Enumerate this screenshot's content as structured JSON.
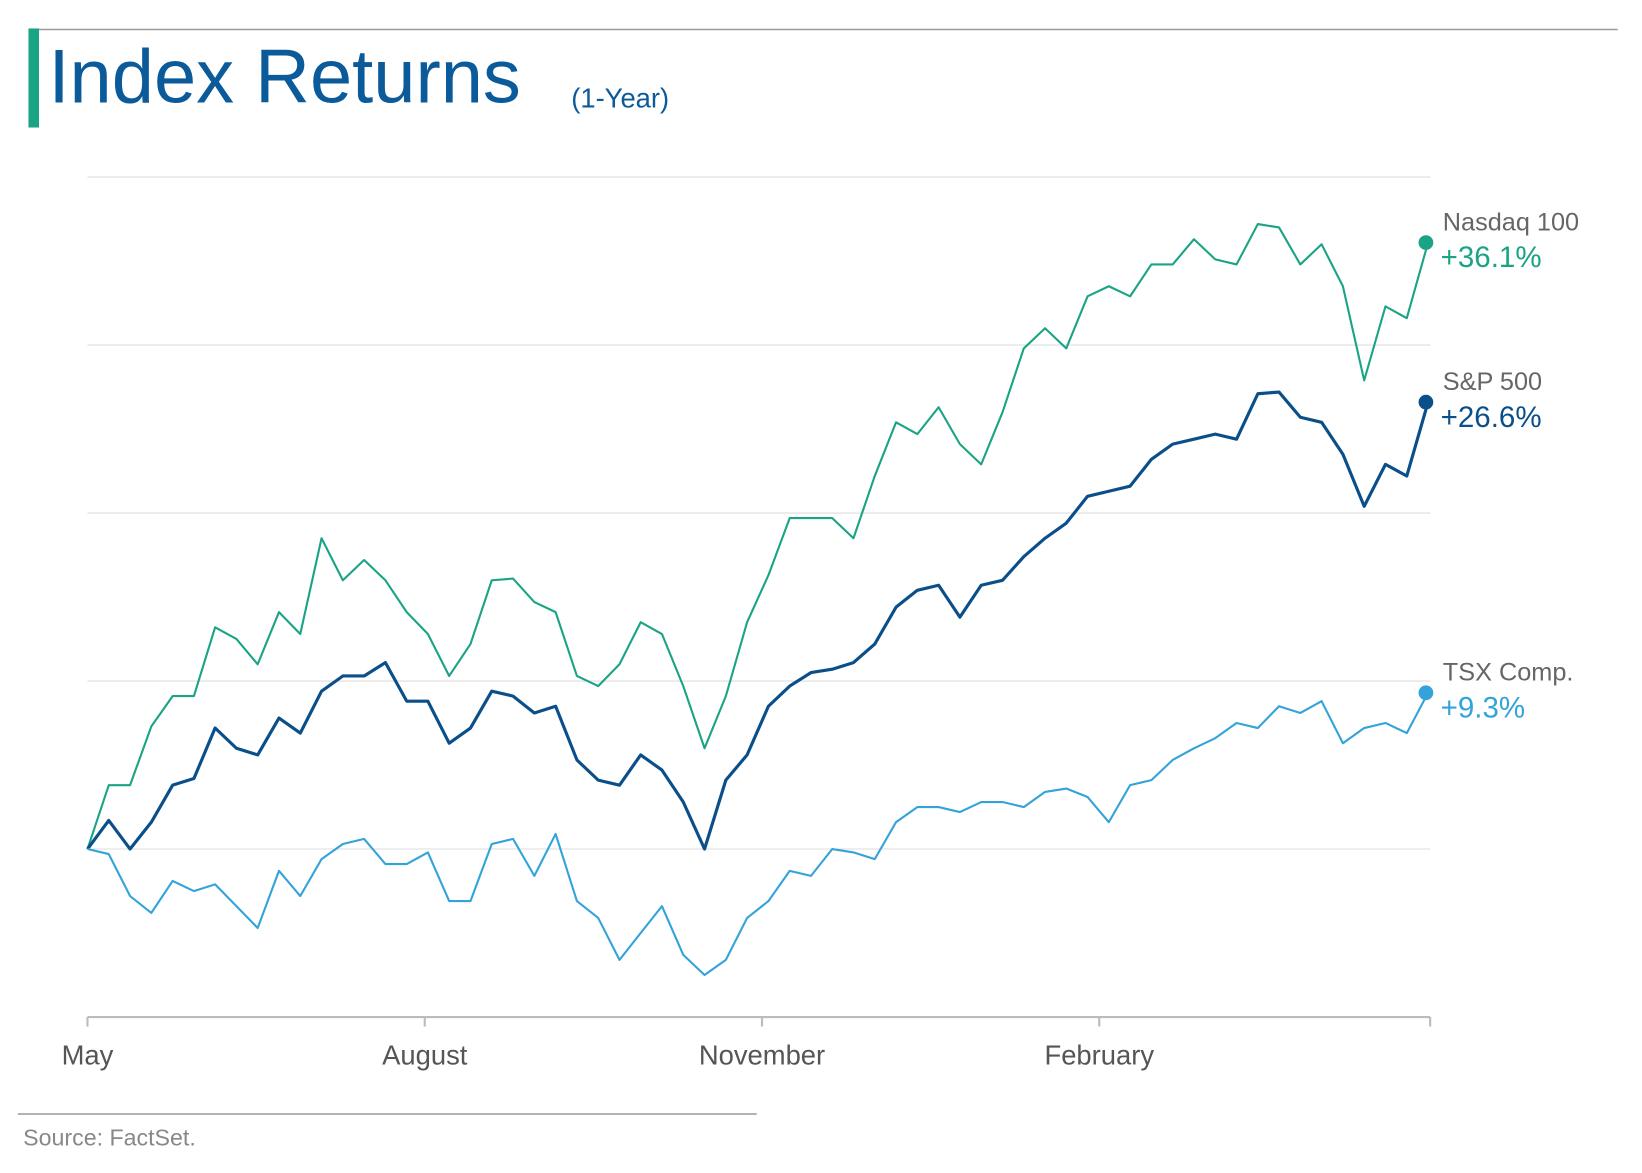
{
  "chart_data": {
    "type": "line",
    "title": "Index Returns",
    "subtitle": "(1-Year)",
    "source": "Source: FactSet.",
    "xlim": [
      0,
      63.1
    ],
    "xticks": [
      {
        "value": 0,
        "label": "May"
      },
      {
        "value": 15.85,
        "label": "August"
      },
      {
        "value": 31.7,
        "label": "November"
      },
      {
        "value": 47.55,
        "label": "February"
      }
    ],
    "ylim": [
      -10,
      40
    ],
    "yticks": [
      -10,
      0,
      10,
      20,
      30,
      40
    ],
    "grid": true,
    "series": [
      {
        "name": "Nasdaq 100",
        "color": "#1aa385",
        "end_label": "+36.1%",
        "values": [
          0,
          3.8,
          3.8,
          7.3,
          9.1,
          9.1,
          13.2,
          12.5,
          11.0,
          14.1,
          12.8,
          18.5,
          16.0,
          17.2,
          16.0,
          14.1,
          12.8,
          10.3,
          12.2,
          16.0,
          16.1,
          14.7,
          14.1,
          10.3,
          9.7,
          11.0,
          13.5,
          12.8,
          9.7,
          6.0,
          9.1,
          13.5,
          16.3,
          19.7,
          19.7,
          19.7,
          18.5,
          22.2,
          25.4,
          24.7,
          26.3,
          24.1,
          22.9,
          26.0,
          29.8,
          31.0,
          29.8,
          32.9,
          33.5,
          32.9,
          34.8,
          34.8,
          36.3,
          35.1,
          34.8,
          37.2,
          37.0,
          34.8,
          36.0,
          33.5,
          27.9,
          32.3,
          31.6,
          36.1
        ]
      },
      {
        "name": "S&P 500",
        "color": "#0b4f8a",
        "end_label": "+26.6%",
        "values": [
          0,
          1.7,
          0,
          1.6,
          3.8,
          4.2,
          7.2,
          6.0,
          5.6,
          7.8,
          6.9,
          9.4,
          10.3,
          10.3,
          11.1,
          8.8,
          8.8,
          6.3,
          7.2,
          9.4,
          9.1,
          8.1,
          8.5,
          5.3,
          4.1,
          3.8,
          5.6,
          4.7,
          2.8,
          0,
          4.1,
          5.6,
          8.5,
          9.7,
          10.5,
          10.7,
          11.1,
          12.2,
          14.4,
          15.4,
          15.7,
          13.8,
          15.7,
          16.0,
          17.4,
          18.5,
          19.4,
          21.0,
          21.3,
          21.6,
          23.2,
          24.1,
          24.4,
          24.7,
          24.4,
          27.1,
          27.2,
          25.7,
          25.4,
          23.5,
          20.4,
          22.9,
          22.2,
          26.6
        ]
      },
      {
        "name": "TSX Comp.",
        "color": "#33a3d9",
        "end_label": "+9.3%",
        "values": [
          0,
          -0.3,
          -2.8,
          -3.8,
          -1.9,
          -2.5,
          -2.1,
          -3.4,
          -4.7,
          -1.3,
          -2.8,
          -0.6,
          0.3,
          0.6,
          -0.9,
          -0.9,
          -0.2,
          -3.1,
          -3.1,
          0.3,
          0.6,
          -1.6,
          0.9,
          -3.1,
          -4.1,
          -6.6,
          -5.0,
          -3.4,
          -6.3,
          -7.5,
          -6.6,
          -4.1,
          -3.1,
          -1.3,
          -1.6,
          0,
          -0.2,
          -0.6,
          1.6,
          2.5,
          2.5,
          2.2,
          2.8,
          2.8,
          2.5,
          3.4,
          3.6,
          3.1,
          1.6,
          3.8,
          4.1,
          5.3,
          6.0,
          6.6,
          7.5,
          7.2,
          8.5,
          8.1,
          8.8,
          6.3,
          7.2,
          7.5,
          6.9,
          9.3
        ]
      }
    ]
  }
}
